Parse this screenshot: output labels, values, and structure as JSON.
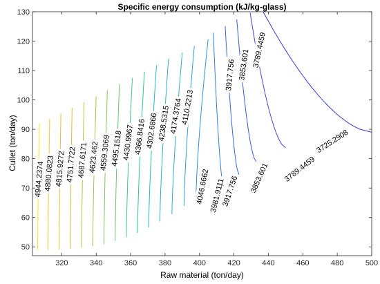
{
  "chart_data": {
    "type": "contour",
    "title": "Specific energy consumption (kJ/kg-glass)",
    "xlabel": "Raw material (ton/day)",
    "ylabel": "Cullet (ton/day)",
    "xlim": [
      303,
      500
    ],
    "ylim": [
      47,
      130
    ],
    "xticks": [
      "320",
      "340",
      "360",
      "380",
      "400",
      "420",
      "440",
      "460",
      "480",
      "500"
    ],
    "yticks": [
      "50",
      "60",
      "70",
      "80",
      "90",
      "100",
      "110",
      "120",
      "130"
    ],
    "grid": false,
    "levels": [
      {
        "label": "4944.2374",
        "color": "#f5e41a",
        "x0": 306,
        "x1": 307
      },
      {
        "label": "4880.0823",
        "color": "#f0c630",
        "x0": 312,
        "x1": 313
      },
      {
        "label": "4815.9272",
        "color": "#e8bd36",
        "x0": 318.5,
        "x1": 319.5
      },
      {
        "label": "4751.7722",
        "color": "#d8ba3a",
        "x0": 325,
        "x1": 326
      },
      {
        "label": "4687.6171",
        "color": "#c3bc3e",
        "x0": 331.5,
        "x1": 333
      },
      {
        "label": "4623.462",
        "color": "#a8bf48",
        "x0": 338,
        "x1": 340
      },
      {
        "label": "4559.3069",
        "color": "#84c35b",
        "x0": 344.5,
        "x1": 346.5
      },
      {
        "label": "4495.1518",
        "color": "#5fc76e",
        "x0": 351,
        "x1": 353.5
      },
      {
        "label": "4430.9967",
        "color": "#3dc687",
        "x0": 357.5,
        "x1": 361
      },
      {
        "label": "4366.8416",
        "color": "#27c3a0",
        "x0": 364,
        "x1": 368
      },
      {
        "label": "4302.6866",
        "color": "#1dbdb3",
        "x0": 370.5,
        "x1": 375
      },
      {
        "label": "4238.5315",
        "color": "#25b4c3",
        "x0": 377,
        "x1": 382
      },
      {
        "label": "4174.3764",
        "color": "#2caace",
        "x0": 384,
        "x1": 390
      },
      {
        "label": "4110.2213",
        "color": "#2e9dd8",
        "x0": 391,
        "x1": 397
      },
      {
        "label": "4046.6662",
        "color": "#2a8ee2",
        "x0": 398,
        "x1": 405
      },
      {
        "label": "3981.9111",
        "color": "#2c7ce8",
        "x0": 406,
        "x1": 414
      },
      {
        "label": "3917.756",
        "color": "#3269e8",
        "x0": 413,
        "x1": 423
      },
      {
        "label": "3853.601",
        "color": "#3a55e0",
        "x0": 420,
        "x1": 433
      },
      {
        "label": "3789.4459",
        "color": "#3f44d6",
        "x0": 428,
        "x1": 450
      },
      {
        "label": "3725.2908",
        "color": "#3a3acd",
        "x0": 437,
        "x1": 500
      }
    ],
    "contour_labels": [
      {
        "text": "4944.2374",
        "x": 306.6,
        "y": 73,
        "rot": -85
      },
      {
        "text": "4880.0823",
        "x": 312.4,
        "y": 75,
        "rot": -85
      },
      {
        "text": "4815.9272",
        "x": 318.8,
        "y": 76.5,
        "rot": -85
      },
      {
        "text": "4751.7722",
        "x": 325.2,
        "y": 78,
        "rot": -85
      },
      {
        "text": "4687.6171",
        "x": 331.8,
        "y": 79.5,
        "rot": -85
      },
      {
        "text": "4623.462",
        "x": 338.3,
        "y": 80.5,
        "rot": -84
      },
      {
        "text": "4559.3069",
        "x": 344.8,
        "y": 82,
        "rot": -84
      },
      {
        "text": "4495.1518",
        "x": 351.6,
        "y": 83.5,
        "rot": -83
      },
      {
        "text": "4430.9967",
        "x": 358.3,
        "y": 85.5,
        "rot": -83
      },
      {
        "text": "4366.8416",
        "x": 365.1,
        "y": 87.5,
        "rot": -83
      },
      {
        "text": "4302.6866",
        "x": 372,
        "y": 89.5,
        "rot": -82
      },
      {
        "text": "4238.5315",
        "x": 379,
        "y": 92,
        "rot": -82
      },
      {
        "text": "4174.3764",
        "x": 386,
        "y": 94.5,
        "rot": -81
      },
      {
        "text": "4110.2213",
        "x": 392.8,
        "y": 97.5,
        "rot": -80
      },
      {
        "text": "4046.6662",
        "x": 401.5,
        "y": 70.5,
        "rot": -79
      },
      {
        "text": "3981.9111",
        "x": 410,
        "y": 67.5,
        "rot": -76
      },
      {
        "text": "3917.756",
        "x": 417.5,
        "y": 69,
        "rot": -71
      },
      {
        "text": "3917.756",
        "x": 417.5,
        "y": 108.5,
        "rot": -84
      },
      {
        "text": "3853.601",
        "x": 425.5,
        "y": 112,
        "rot": -82
      },
      {
        "text": "3853.601",
        "x": 434.5,
        "y": 73.5,
        "rot": -66
      },
      {
        "text": "3789.4459",
        "x": 434.5,
        "y": 117,
        "rot": -78
      },
      {
        "text": "3789.4459",
        "x": 458,
        "y": 76.5,
        "rot": -38
      },
      {
        "text": "3725.2908",
        "x": 477,
        "y": 86,
        "rot": -33
      }
    ]
  }
}
